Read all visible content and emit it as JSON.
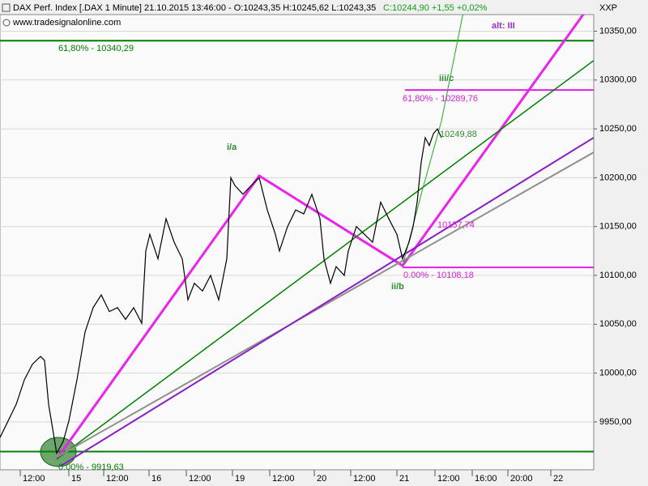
{
  "chart_data": {
    "type": "line",
    "header": "DAX Perf. Index [.DAX  1 Minute] 21.10.2015 13:46:00 - O:10243,35 H:10245,62 L:10243,35",
    "header_change": "C:10244,90 +1,55 +0,02%",
    "source": "www.tradesignalonline.com",
    "symbol": "XXP",
    "color": "#000000",
    "x": [
      0,
      10,
      20,
      30,
      40,
      50,
      55,
      60,
      65,
      70,
      78,
      85,
      95,
      105,
      115,
      125,
      135,
      145,
      155,
      165,
      175,
      180,
      185,
      195,
      205,
      215,
      225,
      232,
      240,
      250,
      260,
      270,
      280,
      285,
      290,
      300,
      310,
      320,
      330,
      340,
      345,
      355,
      365,
      375,
      385,
      395,
      400,
      408,
      415,
      425,
      430,
      440,
      450,
      460,
      470,
      480,
      490,
      497,
      505,
      510,
      515,
      520,
      525,
      530,
      535,
      540,
      545
    ],
    "values": [
      9934,
      9951,
      9968,
      9993,
      10009,
      10017,
      10013,
      9968,
      9943,
      9918,
      9930,
      9951,
      9993,
      10042,
      10067,
      10080,
      10063,
      10067,
      10055,
      10067,
      10051,
      10125,
      10142,
      10117,
      10158,
      10134,
      10117,
      10075,
      10092,
      10084,
      10100,
      10075,
      10117,
      10200,
      10192,
      10183,
      10192,
      10200,
      10167,
      10142,
      10125,
      10150,
      10167,
      10163,
      10183,
      10158,
      10117,
      10092,
      10109,
      10100,
      10125,
      10150,
      10142,
      10134,
      10175,
      10158,
      10142,
      10117,
      10134,
      10150,
      10175,
      10216,
      10241,
      10233,
      10245,
      10250,
      10241
    ],
    "xlim": [
      0,
      733
    ],
    "ylim": [
      9901,
      10367
    ],
    "xticks": [
      {
        "value": 25,
        "label": "12:00"
      },
      {
        "value": 85,
        "label": "15"
      },
      {
        "value": 128,
        "label": "12:00"
      },
      {
        "value": 184,
        "label": "16"
      },
      {
        "value": 230,
        "label": "12:00"
      },
      {
        "value": 287,
        "label": "19"
      },
      {
        "value": 333,
        "label": "12:00"
      },
      {
        "value": 388,
        "label": "20"
      },
      {
        "value": 433,
        "label": "12:00"
      },
      {
        "value": 490,
        "label": "21"
      },
      {
        "value": 537,
        "label": "12:00"
      },
      {
        "value": 583,
        "label": "16:00"
      },
      {
        "value": 627,
        "label": "20:00"
      },
      {
        "value": 680,
        "label": "22"
      }
    ],
    "yticks": [
      {
        "value": 9950,
        "label": "9950,00"
      },
      {
        "value": 10000,
        "label": "10000,00"
      },
      {
        "value": 10050,
        "label": "10050,00"
      },
      {
        "value": 10100,
        "label": "10100,00"
      },
      {
        "value": 10150,
        "label": "10150,00"
      },
      {
        "value": 10200,
        "label": "10200,00"
      },
      {
        "value": 10250,
        "label": "10250,00"
      },
      {
        "value": 10300,
        "label": "10300,00"
      },
      {
        "value": 10350,
        "label": "10350,00"
      }
    ],
    "grid": true,
    "levels": [
      {
        "value": 10340.29,
        "label": "61,80% - 10340,29",
        "color": "#008000",
        "from": 0
      },
      {
        "value": 10289.76,
        "label": "61,80% - 10289,76",
        "color": "#e020e0",
        "from": 500
      },
      {
        "value": 10108.18,
        "label": "0.00% - 10108,18",
        "color": "#e020e0",
        "from": 497
      },
      {
        "value": 9919.63,
        "label": "0.00% - 9919,63",
        "color": "#008000",
        "from": 0
      }
    ],
    "trendlines": [
      {
        "color": "#ee22ee",
        "width": 3,
        "x": [
          70,
          320,
          497,
          733
        ],
        "y": [
          9912,
          10202,
          10110,
          10382
        ]
      },
      {
        "color": "#008000",
        "width": 1.5,
        "x": [
          70,
          733
        ],
        "y": [
          9912,
          10320
        ]
      },
      {
        "color": "#909090",
        "width": 2,
        "x": [
          70,
          733
        ],
        "y": [
          9914,
          10226
        ]
      },
      {
        "color": "#8a1ec8",
        "width": 2,
        "x": [
          75,
          733
        ],
        "y": [
          9905,
          10241
        ]
      },
      {
        "color": "#22aa22",
        "width": 1,
        "x": [
          497,
          520,
          545,
          575
        ],
        "y": [
          10110,
          10183,
          10258,
          10382
        ]
      }
    ],
    "annotations": [
      {
        "text": "i/a",
        "color": "#2e8b2e"
      },
      {
        "text": "ii/b",
        "color": "#2e8b2e"
      },
      {
        "text": "iii/c",
        "color": "#2e8b2e"
      },
      {
        "text": "alt: III",
        "color": "#9932cc"
      },
      {
        "text": "10157,74",
        "color": "#e020e0"
      },
      {
        "text": "10249,88",
        "color": "#2e8b2e"
      }
    ]
  }
}
